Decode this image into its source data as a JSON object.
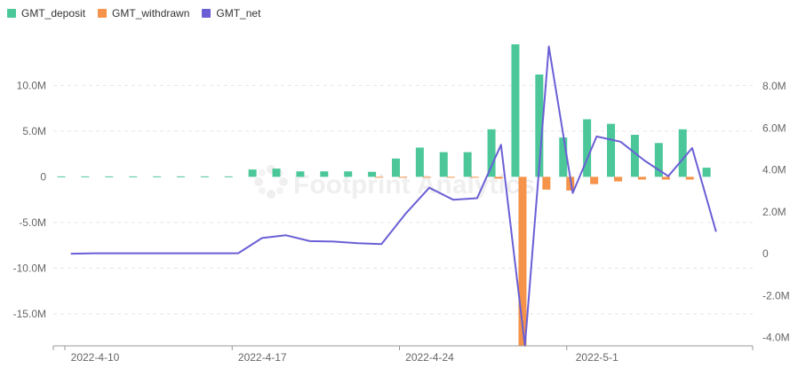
{
  "legend": {
    "deposit_label": "GMT_deposit",
    "withdrawn_label": "GMT_withdrawn",
    "net_label": "GMT_net"
  },
  "watermark": "Footprint Analytics",
  "colors": {
    "deposit": "#4cc79a",
    "withdrawn": "#f5934a",
    "net": "#6a5fd5",
    "grid": "#e6e6e6",
    "axis": "#999999",
    "tick_text": "#666666"
  },
  "chart_data": {
    "type": "bar",
    "x_tick_labels": [
      "2022-4-10",
      "2022-4-17",
      "2022-4-24",
      "2022-5-1"
    ],
    "x_tick_dates": [
      "2022-04-10",
      "2022-04-17",
      "2022-04-24",
      "2022-05-01"
    ],
    "dates": [
      "2022-04-10",
      "2022-04-11",
      "2022-04-12",
      "2022-04-13",
      "2022-04-14",
      "2022-04-15",
      "2022-04-16",
      "2022-04-17",
      "2022-04-18",
      "2022-04-19",
      "2022-04-20",
      "2022-04-21",
      "2022-04-22",
      "2022-04-23",
      "2022-04-24",
      "2022-04-25",
      "2022-04-26",
      "2022-04-27",
      "2022-04-28",
      "2022-04-29",
      "2022-04-30",
      "2022-05-01",
      "2022-05-02",
      "2022-05-03",
      "2022-05-04",
      "2022-05-05",
      "2022-05-06",
      "2022-05-07",
      "2022-05-08"
    ],
    "series": [
      {
        "name": "GMT_deposit",
        "axis": "left",
        "kind": "bar",
        "values": [
          0.05,
          0.05,
          0.05,
          0.05,
          0.05,
          0.05,
          0.05,
          0.05,
          0.8,
          0.9,
          0.6,
          0.6,
          0.6,
          0.55,
          2.0,
          3.2,
          2.7,
          2.7,
          5.2,
          14.5,
          11.2,
          4.3,
          6.3,
          5.8,
          4.6,
          3.7,
          5.2,
          1.0,
          0
        ]
      },
      {
        "name": "GMT_withdrawn",
        "axis": "left",
        "kind": "bar",
        "values": [
          0,
          0,
          0,
          0,
          0,
          0,
          0,
          0,
          0,
          0,
          0,
          0,
          0,
          -0.05,
          -0.1,
          -0.1,
          -0.1,
          -0.1,
          -0.2,
          -18.5,
          -1.4,
          -1.5,
          -0.8,
          -0.5,
          -0.3,
          -0.3,
          -0.3,
          0,
          0
        ]
      },
      {
        "name": "GMT_net",
        "axis": "right",
        "kind": "line",
        "values": [
          0,
          0.02,
          0.02,
          0.02,
          0.02,
          0.02,
          0.02,
          0.02,
          0.75,
          0.88,
          0.6,
          0.58,
          0.5,
          0.46,
          1.9,
          3.15,
          2.58,
          2.65,
          5.2,
          -4.4,
          9.9,
          2.9,
          5.6,
          5.35,
          4.45,
          3.7,
          5.05,
          1.05,
          null
        ]
      }
    ],
    "y_left": {
      "ticks": [
        -15,
        -10,
        -5,
        0,
        5,
        10
      ],
      "tick_labels": [
        "-15.0M",
        "-10.0M",
        "-5.0M",
        "0",
        "5.0M",
        "10.0M"
      ],
      "range": [
        -18.5,
        14.5
      ]
    },
    "y_right": {
      "ticks": [
        -4,
        -2,
        0,
        2,
        4,
        6,
        8
      ],
      "tick_labels": [
        "-4.0M",
        "-2.0M",
        "0",
        "2.0M",
        "4.0M",
        "6.0M",
        "8.0M"
      ],
      "range": [
        -4.4,
        10.0
      ]
    },
    "grid": true,
    "legend_position": "top-left"
  }
}
